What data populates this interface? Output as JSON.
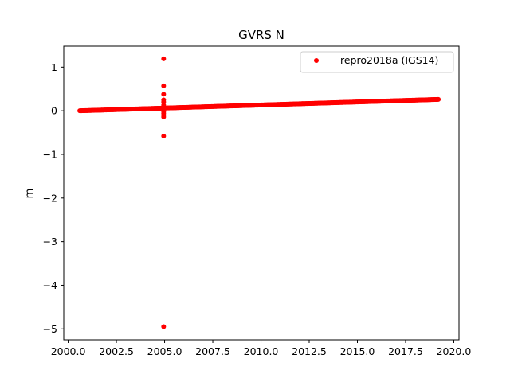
{
  "chart_data": {
    "type": "scatter",
    "title": "GVRS N",
    "xlabel": "",
    "ylabel": "m",
    "xlim": [
      1999.77,
      2020.27
    ],
    "ylim": [
      -5.25,
      1.48
    ],
    "x_ticks": [
      2000.0,
      2002.5,
      2005.0,
      2007.5,
      2010.0,
      2012.5,
      2015.0,
      2017.5,
      2020.0
    ],
    "x_tick_labels": [
      "2000.0",
      "2002.5",
      "2005.0",
      "2007.5",
      "2010.0",
      "2012.5",
      "2015.0",
      "2017.5",
      "2020.0"
    ],
    "y_ticks": [
      -5,
      -4,
      -3,
      -2,
      -1,
      0,
      1
    ],
    "y_tick_labels": [
      "−5",
      "−4",
      "−3",
      "−2",
      "−1",
      "0",
      "1"
    ],
    "grid": false,
    "legend_position": "top-right",
    "series": [
      {
        "name": "repro2018a (IGS14)",
        "color": "#ff0000",
        "marker": "circle",
        "trend": {
          "x_start": 2000.6,
          "y_start": 0.0,
          "x_end": 2019.2,
          "y_end": 0.26
        },
        "outliers": {
          "x": [
            2004.95,
            2004.95,
            2004.95,
            2004.95,
            2004.95,
            2004.95,
            2004.95,
            2004.95,
            2004.95,
            2004.95,
            2004.95,
            2004.95,
            2004.95
          ],
          "y": [
            1.19,
            0.57,
            0.38,
            0.25,
            0.2,
            0.13,
            -0.02,
            -0.06,
            -0.1,
            -0.14,
            -0.58,
            -4.95,
            0.1
          ]
        }
      }
    ]
  }
}
